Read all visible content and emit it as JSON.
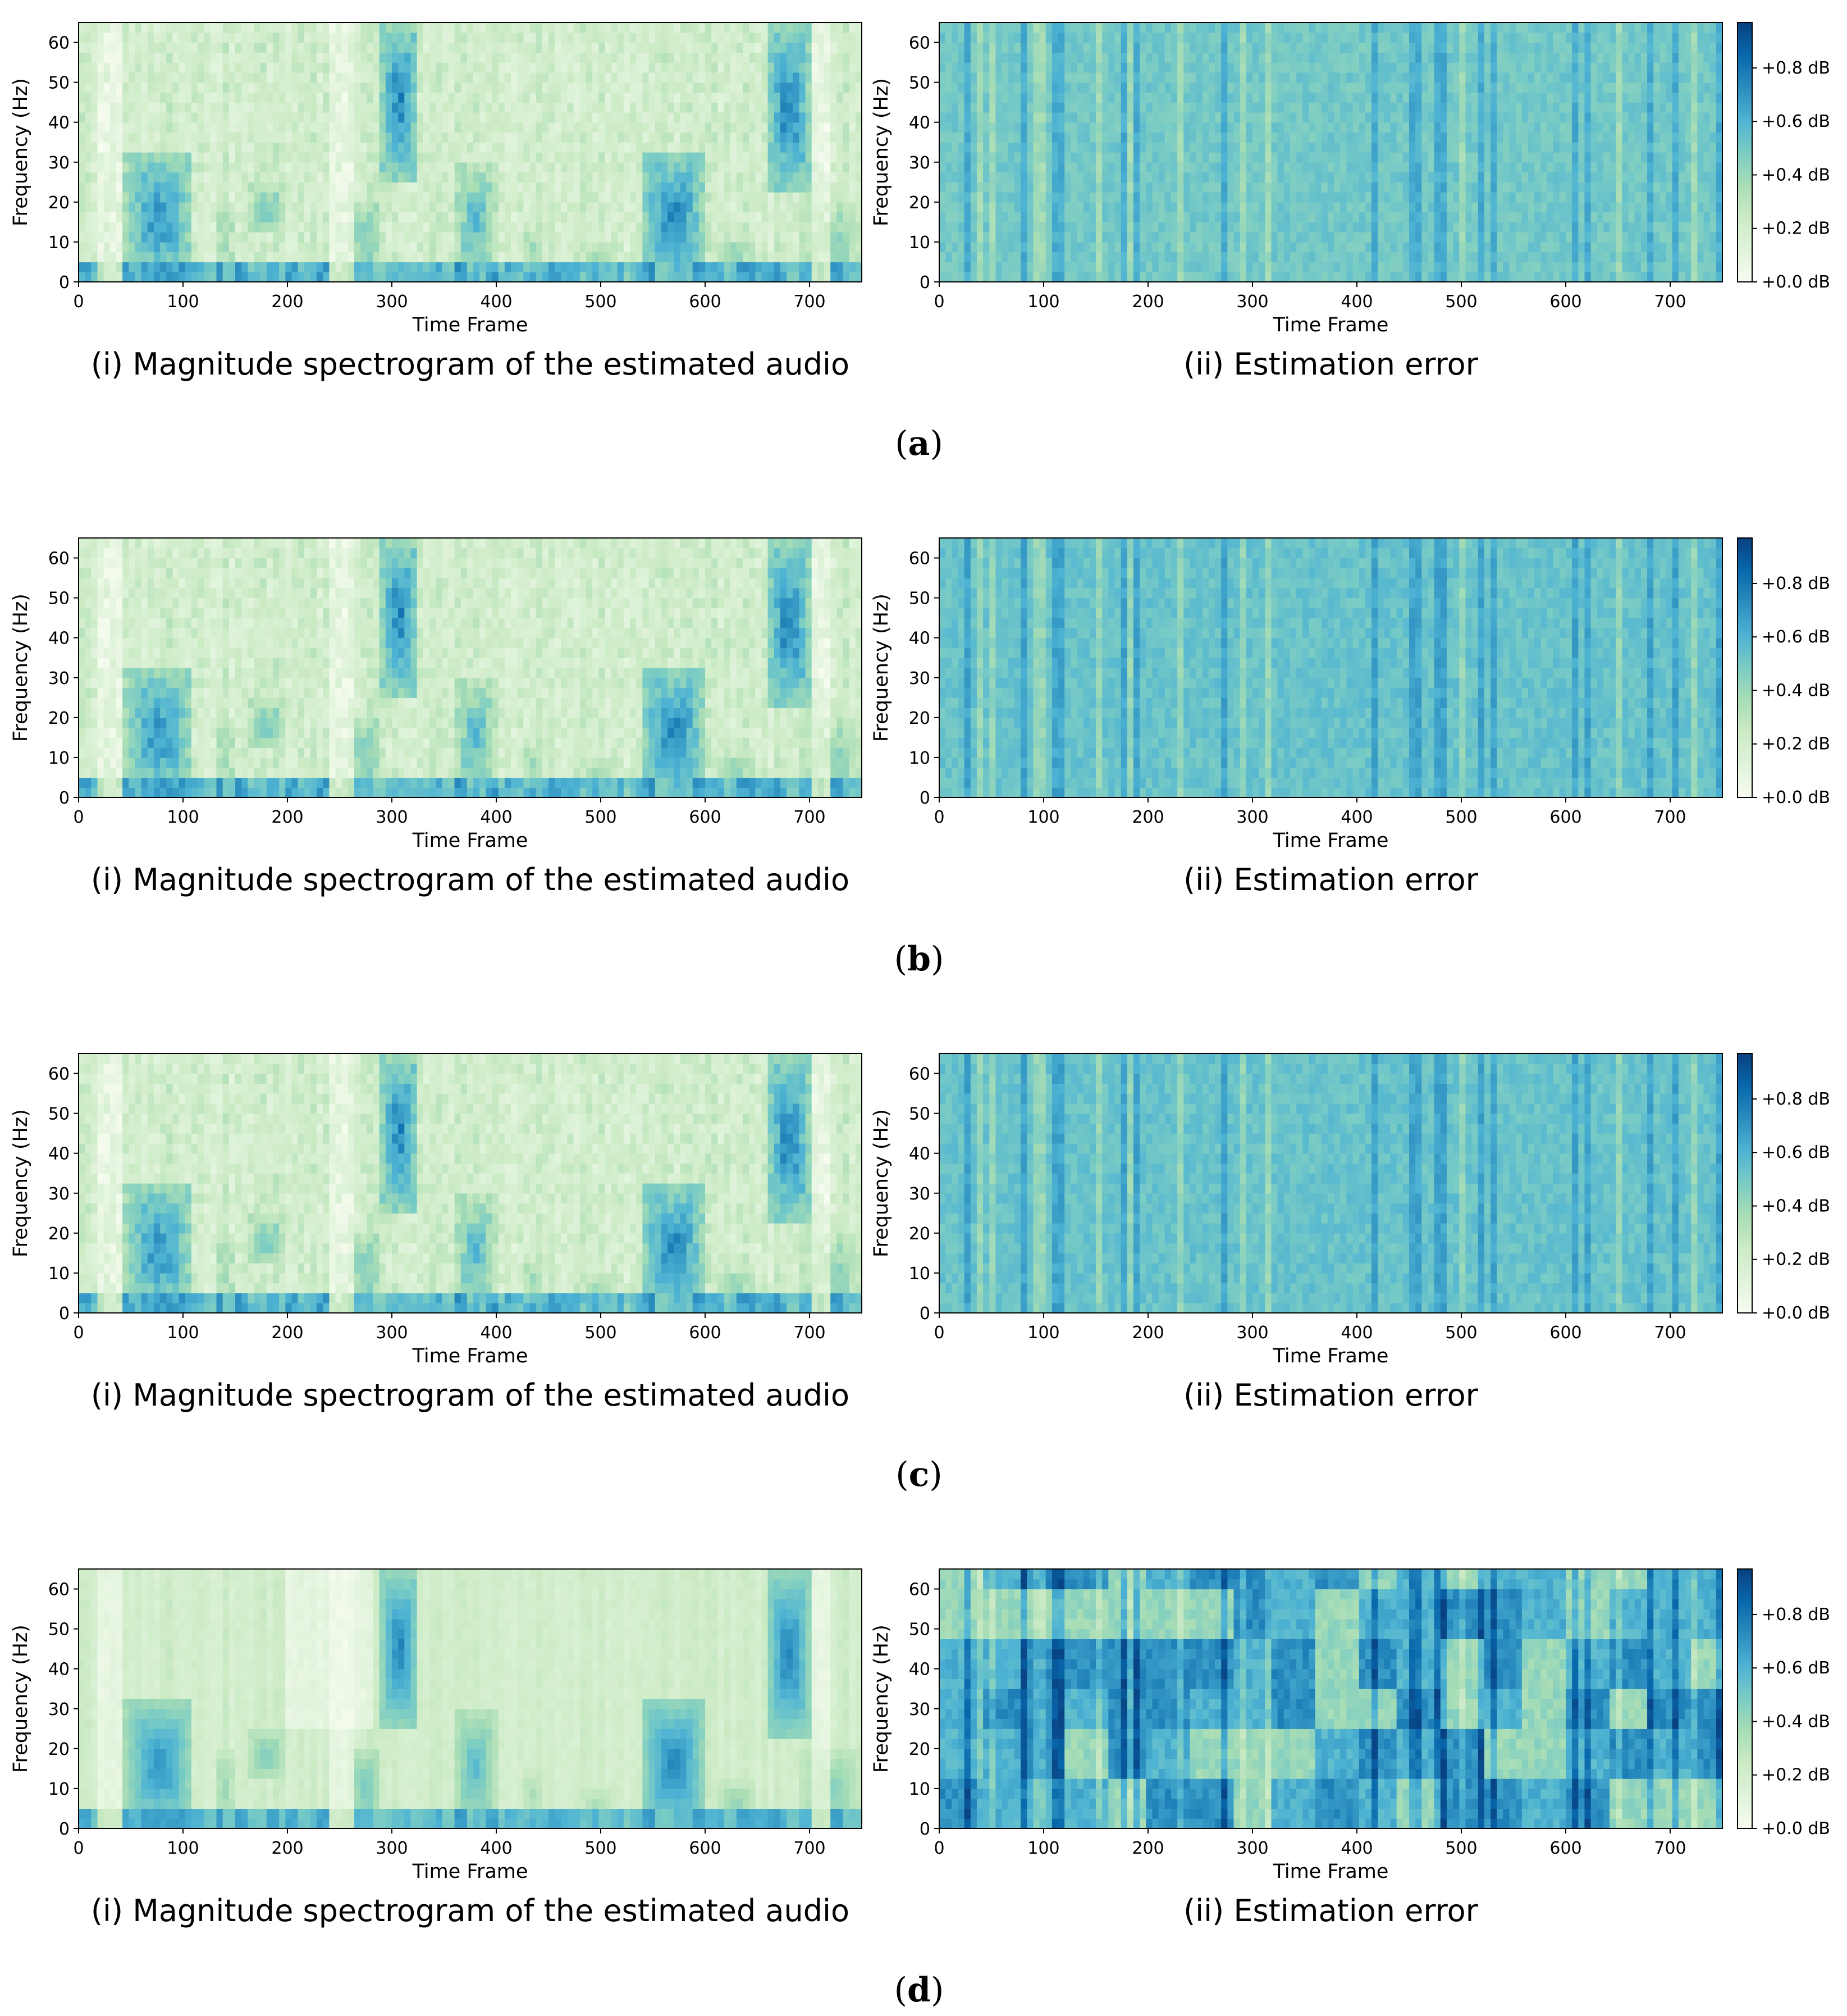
{
  "figure": {
    "rows": [
      {
        "panel_label": "a",
        "open_paren": "(",
        "close_paren": ")",
        "left_caption": "(i) Magnitude spectrogram of the estimated audio",
        "right_caption": "(ii) Estimation error",
        "spectrogram_variant": "dense",
        "error_variant": "smooth"
      },
      {
        "panel_label": "b",
        "open_paren": "(",
        "close_paren": ")",
        "left_caption": "(i) Magnitude spectrogram of the estimated audio",
        "right_caption": "(ii) Estimation error",
        "spectrogram_variant": "dense",
        "error_variant": "medium"
      },
      {
        "panel_label": "c",
        "open_paren": "(",
        "close_paren": ")",
        "left_caption": "(i) Magnitude spectrogram of the estimated audio",
        "right_caption": "(ii) Estimation error",
        "spectrogram_variant": "dense",
        "error_variant": "medium"
      },
      {
        "panel_label": "d",
        "open_paren": "(",
        "close_paren": ")",
        "left_caption": "(i) Magnitude spectrogram of the estimated audio",
        "right_caption": "(ii) Estimation error",
        "spectrogram_variant": "smooth",
        "error_variant": "large"
      }
    ]
  },
  "chart_data": [
    {
      "type": "heatmap",
      "title": "",
      "xlabel": "Time Frame",
      "ylabel": "Frequency (Hz)",
      "xlim": [
        0,
        750
      ],
      "ylim": [
        0,
        65
      ],
      "x_ticks": [
        0,
        100,
        200,
        300,
        400,
        500,
        600,
        700
      ],
      "y_ticks": [
        0,
        10,
        20,
        30,
        40,
        50,
        60
      ],
      "colormap": "GnBu",
      "high_energy_regions": [
        {
          "time_range": [
            40,
            110
          ],
          "freq_range": [
            0,
            30
          ],
          "label": "low-frequency burst"
        },
        {
          "time_range": [
            290,
            320
          ],
          "freq_range": [
            25,
            65
          ],
          "label": "vertical band"
        },
        {
          "time_range": [
            550,
            590
          ],
          "freq_range": [
            0,
            30
          ],
          "label": "low-frequency burst"
        },
        {
          "time_range": [
            660,
            700
          ],
          "freq_range": [
            20,
            65
          ],
          "label": "vertical band"
        }
      ]
    },
    {
      "type": "heatmap",
      "title": "",
      "xlabel": "Time Frame",
      "ylabel": "Frequency (Hz)",
      "xlim": [
        0,
        750
      ],
      "ylim": [
        0,
        65
      ],
      "x_ticks": [
        0,
        100,
        200,
        300,
        400,
        500,
        600,
        700
      ],
      "y_ticks": [
        0,
        10,
        20,
        30,
        40,
        50,
        60
      ],
      "colormap": "GnBu",
      "colorbar": {
        "range_db": [
          0.0,
          0.97
        ],
        "tick_values": [
          0.0,
          0.2,
          0.4,
          0.6,
          0.8
        ],
        "tick_labels": [
          "+0.0 dB",
          "+0.2 dB",
          "+0.4 dB",
          "+0.6 dB",
          "+0.8 dB"
        ]
      }
    }
  ],
  "colors": {
    "colormap_stops": [
      "#f7fcf0",
      "#e0f3db",
      "#ccebc5",
      "#a8ddb5",
      "#7bccc4",
      "#4eb3d3",
      "#2b8cbe",
      "#0868ac",
      "#084081"
    ]
  }
}
